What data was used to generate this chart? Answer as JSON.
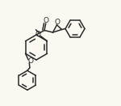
{
  "bg_color": "#faf8f0",
  "line_color": "#2a2a2a",
  "line_width": 1.1,
  "figsize": [
    1.5,
    1.31
  ],
  "dpi": 100,
  "xlim": [
    0,
    15
  ],
  "ylim": [
    0,
    13
  ]
}
